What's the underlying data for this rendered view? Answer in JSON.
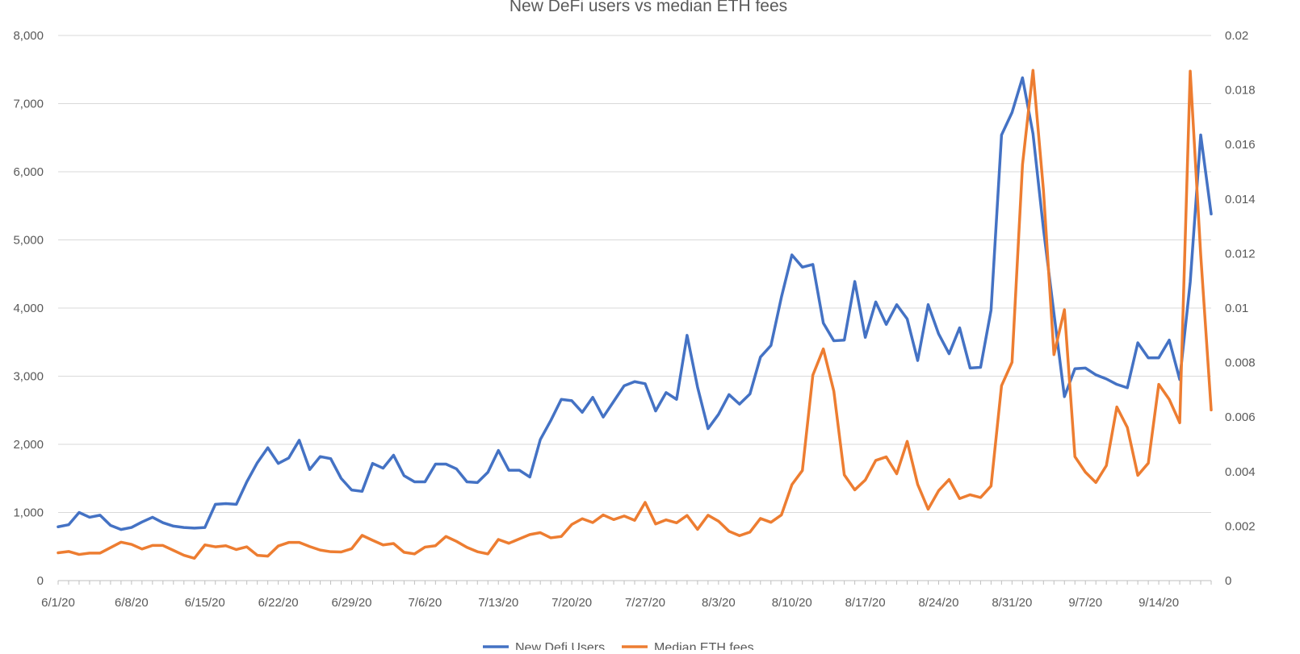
{
  "chart_data": {
    "type": "line",
    "title": "New DeFi users vs median ETH fees",
    "xlabel": "",
    "ylabel": "",
    "y2label": "",
    "ylim": [
      0,
      8000
    ],
    "y2lim": [
      0,
      0.02
    ],
    "x_start": "6/1/20",
    "x_end": "9/19/20",
    "x_tick_labels": [
      "6/1/20",
      "6/8/20",
      "6/15/20",
      "6/22/20",
      "6/29/20",
      "7/6/20",
      "7/13/20",
      "7/20/20",
      "7/27/20",
      "8/3/20",
      "8/10/20",
      "8/17/20",
      "8/24/20",
      "8/31/20",
      "9/7/20",
      "9/14/20"
    ],
    "y_tick_labels": [
      "0",
      "1,000",
      "2,000",
      "3,000",
      "4,000",
      "5,000",
      "6,000",
      "7,000",
      "8,000"
    ],
    "y2_tick_labels": [
      "0",
      "0.002",
      "0.004",
      "0.006",
      "0.008",
      "0.01",
      "0.012",
      "0.014",
      "0.016",
      "0.018",
      "0.02"
    ],
    "grid": true,
    "legend_position": "bottom",
    "series": [
      {
        "name": "New Defi Users",
        "axis": "left",
        "color": "#4472C4",
        "values": [
          790,
          820,
          1000,
          930,
          960,
          810,
          750,
          780,
          860,
          930,
          850,
          800,
          780,
          770,
          780,
          1120,
          1130,
          1120,
          1450,
          1730,
          1950,
          1720,
          1800,
          2060,
          1630,
          1820,
          1790,
          1500,
          1330,
          1310,
          1720,
          1650,
          1840,
          1540,
          1450,
          1450,
          1710,
          1710,
          1640,
          1450,
          1440,
          1590,
          1910,
          1620,
          1620,
          1520,
          2070,
          2350,
          2660,
          2640,
          2470,
          2690,
          2400,
          2630,
          2860,
          2920,
          2890,
          2490,
          2760,
          2660,
          3600,
          2840,
          2230,
          2440,
          2730,
          2590,
          2740,
          3280,
          3450,
          4160,
          4780,
          4600,
          4640,
          3780,
          3520,
          3530,
          4390,
          3570,
          4090,
          3760,
          4050,
          3840,
          3230,
          4050,
          3620,
          3330,
          3710,
          3120,
          3130,
          3970,
          6540,
          6870,
          7380,
          6560,
          5160,
          3920,
          2700,
          3110,
          3120,
          3020,
          2960,
          2880,
          2830,
          3490,
          3270,
          3270,
          3530,
          2950,
          4380,
          6540,
          5380
        ]
      },
      {
        "name": "Median ETH fees",
        "axis": "right",
        "color": "#ED7D31",
        "values": [
          0.00102,
          0.00107,
          0.00096,
          0.00101,
          0.00101,
          0.00121,
          0.00141,
          0.00133,
          0.00116,
          0.00129,
          0.00129,
          0.00111,
          0.00093,
          0.00082,
          0.00131,
          0.00124,
          0.00128,
          0.00114,
          0.00124,
          0.00093,
          0.0009,
          0.00127,
          0.0014,
          0.0014,
          0.00125,
          0.00112,
          0.00106,
          0.00105,
          0.00117,
          0.00166,
          0.00148,
          0.00131,
          0.00136,
          0.00104,
          0.00098,
          0.00123,
          0.00128,
          0.00162,
          0.00144,
          0.00122,
          0.00106,
          0.00098,
          0.00151,
          0.00137,
          0.00153,
          0.00169,
          0.00176,
          0.00157,
          0.00162,
          0.00206,
          0.00227,
          0.00213,
          0.00241,
          0.00224,
          0.00237,
          0.00221,
          0.00287,
          0.00208,
          0.00223,
          0.00212,
          0.00239,
          0.00188,
          0.0024,
          0.00218,
          0.00181,
          0.00165,
          0.00178,
          0.00228,
          0.00214,
          0.00241,
          0.00352,
          0.00404,
          0.00754,
          0.0085,
          0.00695,
          0.00388,
          0.00333,
          0.00369,
          0.00441,
          0.00454,
          0.00392,
          0.00511,
          0.00353,
          0.00262,
          0.0033,
          0.00371,
          0.00301,
          0.00315,
          0.00305,
          0.00347,
          0.00715,
          0.00801,
          0.01526,
          0.01872,
          0.01431,
          0.00829,
          0.00994,
          0.00455,
          0.00398,
          0.0036,
          0.00422,
          0.00637,
          0.00562,
          0.00386,
          0.00431,
          0.0072,
          0.00665,
          0.00579,
          0.01869,
          0.01196,
          0.00626
        ]
      }
    ]
  }
}
